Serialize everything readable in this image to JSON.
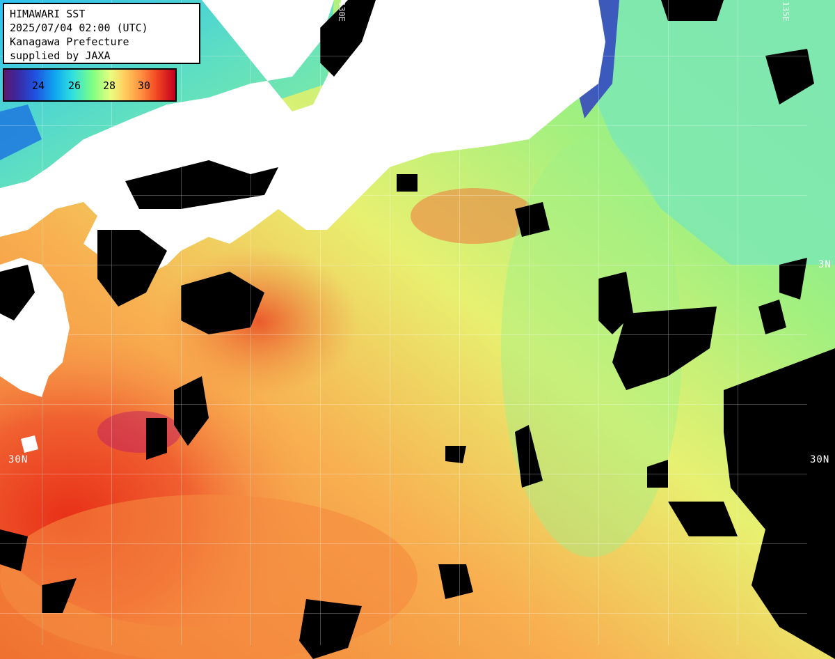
{
  "info": {
    "title": "HIMAWARI SST",
    "datetime": "2025/07/04 02:00 (UTC)",
    "region": "Kanagawa Prefecture",
    "credit": "supplied by JAXA"
  },
  "colorbar": {
    "ticks": [
      "24",
      "26",
      "28",
      "30"
    ],
    "unit": "",
    "colors": [
      "#5a1870",
      "#2050e0",
      "#30e0e0",
      "#80ff80",
      "#e8ff80",
      "#ff9040",
      "#c00020"
    ]
  },
  "grid_labels": {
    "left_30n": "30N",
    "right_30n": "30N",
    "right_mid": "3N",
    "top_a": "130E",
    "top_b": "135E"
  }
}
